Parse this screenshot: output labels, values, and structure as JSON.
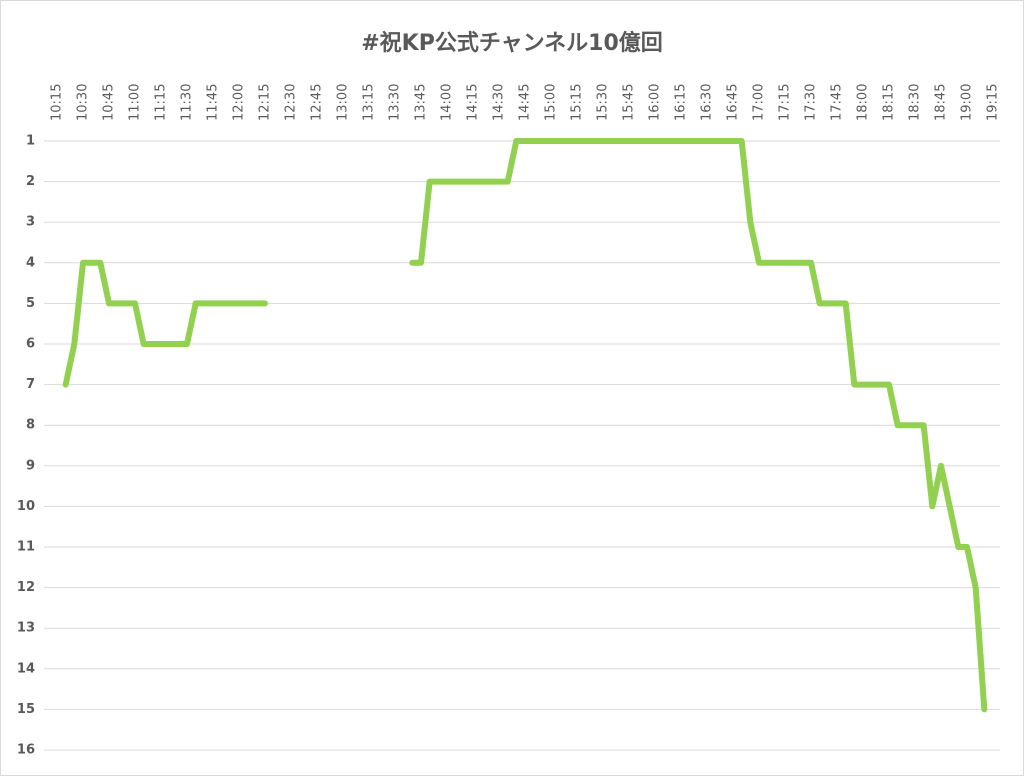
{
  "chart_data": {
    "type": "line",
    "title": "#祝KP公式チャンネル10億回",
    "x_axis_position": "top",
    "x_tick_labels": [
      "10:15",
      "10:30",
      "10:45",
      "11:00",
      "11:15",
      "11:30",
      "11:45",
      "12:00",
      "12:15",
      "12:30",
      "12:45",
      "13:00",
      "13:15",
      "13:30",
      "13:45",
      "14:00",
      "14:15",
      "14:30",
      "14:45",
      "15:00",
      "15:15",
      "15:30",
      "15:45",
      "16:00",
      "16:15",
      "16:30",
      "16:45",
      "17:00",
      "17:15",
      "17:30",
      "17:45",
      "18:00",
      "18:15",
      "18:30",
      "18:45",
      "19:00",
      "19:15"
    ],
    "y_ticks": [
      1,
      2,
      3,
      4,
      5,
      6,
      7,
      8,
      9,
      10,
      11,
      12,
      13,
      14,
      15,
      16
    ],
    "ylim": [
      1,
      16
    ],
    "y_reversed": true,
    "grid": "horizontal",
    "legend": "none",
    "x": [
      "10:15",
      "10:20",
      "10:25",
      "10:30",
      "10:35",
      "10:40",
      "10:45",
      "10:50",
      "10:55",
      "11:00",
      "11:05",
      "11:10",
      "11:15",
      "11:20",
      "11:25",
      "11:30",
      "11:35",
      "11:40",
      "11:45",
      "11:50",
      "11:55",
      "12:00",
      "12:05",
      "12:10",
      "12:15",
      "12:20",
      "12:25",
      "12:30",
      "12:35",
      "12:40",
      "12:45",
      "12:50",
      "12:55",
      "13:00",
      "13:05",
      "13:10",
      "13:15",
      "13:20",
      "13:25",
      "13:30",
      "13:35",
      "13:40",
      "13:45",
      "13:50",
      "13:55",
      "14:00",
      "14:05",
      "14:10",
      "14:15",
      "14:20",
      "14:25",
      "14:30",
      "14:35",
      "14:40",
      "14:45",
      "14:50",
      "14:55",
      "15:00",
      "15:05",
      "15:10",
      "15:15",
      "15:20",
      "15:25",
      "15:30",
      "15:35",
      "15:40",
      "15:45",
      "15:50",
      "15:55",
      "16:00",
      "16:05",
      "16:10",
      "16:15",
      "16:20",
      "16:25",
      "16:30",
      "16:35",
      "16:40",
      "16:45",
      "16:50",
      "16:55",
      "17:00",
      "17:05",
      "17:10",
      "17:15",
      "17:20",
      "17:25",
      "17:30",
      "17:35",
      "17:40",
      "17:45",
      "17:50",
      "17:55",
      "18:00",
      "18:05",
      "18:10",
      "18:15",
      "18:20",
      "18:25",
      "18:30",
      "18:35",
      "18:40",
      "18:45",
      "18:50",
      "18:55",
      "19:00",
      "19:05",
      "19:10",
      "19:15"
    ],
    "series": [
      {
        "values": [
          null,
          7,
          6,
          4,
          4,
          4,
          5,
          5,
          5,
          5,
          6,
          6,
          6,
          6,
          6,
          6,
          5,
          5,
          5,
          5,
          5,
          5,
          5,
          5,
          5,
          null,
          null,
          null,
          null,
          null,
          null,
          null,
          null,
          null,
          null,
          null,
          null,
          null,
          null,
          null,
          null,
          4,
          4,
          2,
          2,
          2,
          2,
          2,
          2,
          2,
          2,
          2,
          2,
          1,
          1,
          1,
          1,
          1,
          1,
          1,
          1,
          1,
          1,
          1,
          1,
          1,
          1,
          1,
          1,
          1,
          1,
          1,
          1,
          1,
          1,
          1,
          1,
          1,
          1,
          1,
          3,
          4,
          4,
          4,
          4,
          4,
          4,
          4,
          5,
          5,
          5,
          5,
          7,
          7,
          7,
          7,
          7,
          8,
          8,
          8,
          8,
          10,
          9,
          10,
          11,
          11,
          12,
          15,
          null
        ]
      }
    ],
    "colors": {
      "line": "#92d050",
      "grid": "#d9d9d9",
      "text": "#595959",
      "border": "#d9d9d9",
      "background": "#ffffff"
    }
  }
}
